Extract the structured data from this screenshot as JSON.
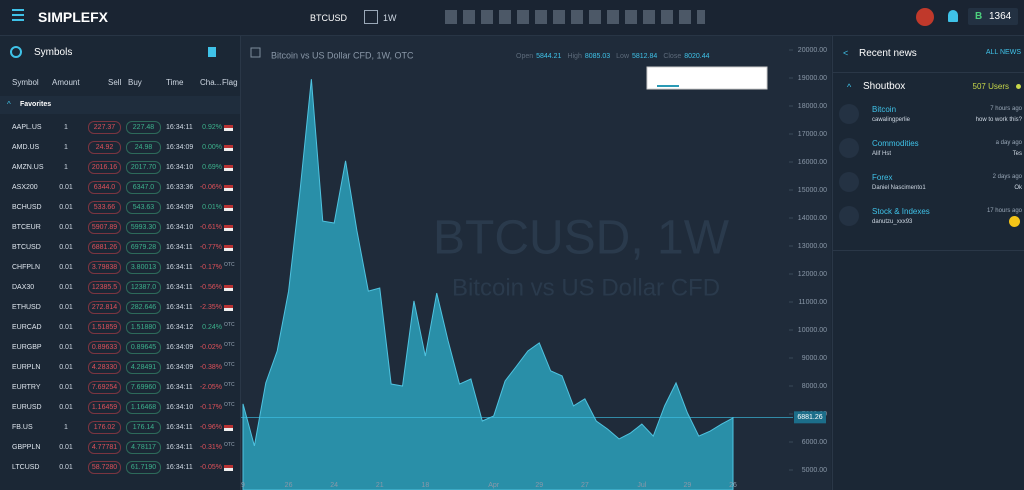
{
  "header": {
    "logo": "SIMPLEFX",
    "symbol": "BTCUSD",
    "timeframe": "1W",
    "account_badge": "B",
    "balance": "1364"
  },
  "symbols": {
    "title": "Symbols",
    "columns": [
      "Symbol",
      "Amount",
      "Sell",
      "Buy",
      "Time",
      "Cha...",
      "Flag"
    ],
    "section": "Favorites",
    "rows": [
      [
        "AAPL.US",
        "1",
        "227.37",
        "227.48",
        "16:34:11",
        "0.92%"
      ],
      [
        "AMD.US",
        "1",
        "24.92",
        "24.98",
        "16:34:09",
        "0.00%"
      ],
      [
        "AMZN.US",
        "1",
        "2016.16",
        "2017.70",
        "16:34:10",
        "0.69%"
      ],
      [
        "ASX200",
        "0.01",
        "6344.0",
        "6347.0",
        "16:33:36",
        "-0.06%"
      ],
      [
        "BCHUSD",
        "0.01",
        "533.66",
        "543.63",
        "16:34:09",
        "0.01%"
      ],
      [
        "BTCEUR",
        "0.01",
        "5907.89",
        "5993.30",
        "16:34:10",
        "-0.61%"
      ],
      [
        "BTCUSD",
        "0.01",
        "6881.26",
        "6979.28",
        "16:34:11",
        "-0.77%"
      ],
      [
        "CHFPLN",
        "0.01",
        "3.79838",
        "3.80013",
        "16:34:11",
        "-0.17%",
        "OTC"
      ],
      [
        "DAX30",
        "0.01",
        "12385.5",
        "12387.0",
        "16:34:11",
        "-0.56%"
      ],
      [
        "ETHUSD",
        "0.01",
        "272.814",
        "282.646",
        "16:34:11",
        "-2.35%"
      ],
      [
        "EURCAD",
        "0.01",
        "1.51859",
        "1.51880",
        "16:34:12",
        "0.24%",
        "OTC"
      ],
      [
        "EURGBP",
        "0.01",
        "0.89633",
        "0.89645",
        "16:34:09",
        "-0.02%",
        "OTC"
      ],
      [
        "EURPLN",
        "0.01",
        "4.28330",
        "4.28491",
        "16:34:09",
        "-0.38%",
        "OTC"
      ],
      [
        "EURTRY",
        "0.01",
        "7.69254",
        "7.69960",
        "16:34:11",
        "-2.05%",
        "OTC"
      ],
      [
        "EURUSD",
        "0.01",
        "1.16459",
        "1.16468",
        "16:34:10",
        "-0.17%",
        "OTC"
      ],
      [
        "FB.US",
        "1",
        "176.02",
        "176.14",
        "16:34:11",
        "-0.96%"
      ],
      [
        "GBPPLN",
        "0.01",
        "4.77781",
        "4.78117",
        "16:34:11",
        "-0.31%",
        "OTC"
      ],
      [
        "LTCUSD",
        "0.01",
        "58.7280",
        "61.7190",
        "16:34:11",
        "-0.05%"
      ]
    ]
  },
  "chart_data": {
    "type": "area",
    "title": "Bitcoin vs US Dollar CFD, 1W, OTC",
    "watermark": "BTCUSD, 1W",
    "watermark_subtitle": "Bitcoin vs US Dollar CFD",
    "ohlc": [
      {
        "label": "Open",
        "value": 5844.21
      },
      {
        "label": "High",
        "value": 8085.03
      },
      {
        "label": "Low",
        "value": 5812.84
      },
      {
        "label": "Close",
        "value": 8020.44
      }
    ],
    "categories": [
      "9",
      null,
      null,
      null,
      "26",
      null,
      null,
      null,
      "24",
      null,
      null,
      null,
      "21",
      null,
      null,
      null,
      "18",
      null,
      null,
      null,
      null,
      null,
      "Apr",
      null,
      null,
      null,
      "29",
      null,
      null,
      null,
      "27",
      null,
      null,
      null,
      null,
      "Jul",
      null,
      null,
      null,
      "29",
      null,
      null,
      null,
      "26"
    ],
    "values": [
      7360,
      5860,
      8110,
      9250,
      11390,
      14960,
      18960,
      13890,
      13820,
      16040,
      13540,
      11390,
      11500,
      8070,
      8000,
      11040,
      9070,
      11320,
      9610,
      8070,
      8250,
      6750,
      6930,
      8180,
      8710,
      9250,
      9540,
      8540,
      8360,
      7290,
      7540,
      6750,
      6460,
      6110,
      6320,
      6640,
      6210,
      7290,
      8110,
      7040,
      6210,
      6390,
      6640,
      6860
    ],
    "color": "#2a9ab5",
    "current_price": 6881.26,
    "grid": false,
    "ylim": [
      5000,
      20000
    ],
    "yticks": [
      {
        "value": 5000,
        "label": "5000.00"
      },
      {
        "value": 6000,
        "label": "6000.00"
      },
      {
        "value": 7000,
        "label": "7000.00"
      },
      {
        "value": 8000,
        "label": "8000.00"
      },
      {
        "value": 9000,
        "label": "9000.00"
      },
      {
        "value": 10000,
        "label": "10000.00"
      },
      {
        "value": 11000,
        "label": "11000.00"
      },
      {
        "value": 12000,
        "label": "12000.00"
      },
      {
        "value": 13000,
        "label": "13000.00"
      },
      {
        "value": 14000,
        "label": "14000.00"
      },
      {
        "value": 15000,
        "label": "15000.00"
      },
      {
        "value": 16000,
        "label": "16000.00"
      },
      {
        "value": 17000,
        "label": "17000.00"
      },
      {
        "value": 18000,
        "label": "18000.00"
      },
      {
        "value": 19000,
        "label": "19000.00"
      },
      {
        "value": 20000,
        "label": "20000.00"
      }
    ]
  },
  "news": {
    "title": "Recent news",
    "all_link": "ALL NEWS",
    "shoutbox": "Shoutbox",
    "users": "507 Users",
    "items": [
      {
        "topic": "Bitcoin",
        "author": "cawalingperlie",
        "time": "7 hours ago",
        "message": "how to work this?"
      },
      {
        "topic": "Commodities",
        "author": "Alif Hst",
        "time": "a day ago",
        "message": "Tes"
      },
      {
        "topic": "Forex",
        "author": "Daniel Nascimento1",
        "time": "2 days ago",
        "message": "Ok"
      },
      {
        "topic": "Stock & Indexes",
        "author": "danutzu_xxx93",
        "time": "17 hours ago"
      }
    ]
  }
}
